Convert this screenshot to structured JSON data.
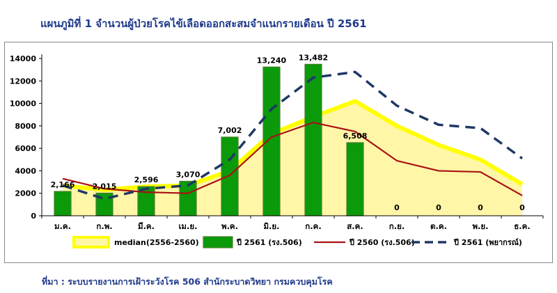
{
  "title": "แผนภูมิที่ 1 จำนวนผู้ป่วยโรคไข้เลือดออกสะสมจำแนกรายเดือน ปี 2561",
  "source": "ที่มา : ระบบรายงานการเฝ้าระวังโรค 506 สำนักระบาดวิทยา กรมควบคุมโรค",
  "colors": {
    "median_fill": "#fff6a8",
    "median_line": "#ffff00",
    "bar_fill": "#0a9a0a",
    "bar_stroke": "#4c7f2c",
    "line_2560": "#aa1212",
    "line_2561_forecast": "#1f3864"
  },
  "chart_data": {
    "type": "bar",
    "categories": [
      "ม.ค.",
      "ก.พ.",
      "มี.ค.",
      "เม.ย.",
      "พ.ค.",
      "มิ.ย.",
      "ก.ค.",
      "ส.ค.",
      "ก.ย.",
      "ต.ค.",
      "พ.ย.",
      "ธ.ค."
    ],
    "ylim": [
      0,
      14000
    ],
    "yticks": [
      "0",
      "2000",
      "4000",
      "6000",
      "8000",
      "10000",
      "12000",
      "14000"
    ],
    "grid": false,
    "legend_position": "bottom",
    "series": [
      {
        "name": "median(2556-2560)",
        "type": "area",
        "values": [
          2700,
          2300,
          2600,
          2700,
          4000,
          7300,
          8800,
          10200,
          8000,
          6300,
          5000,
          2800
        ]
      },
      {
        "name": "ปี 2561 (รง.506)",
        "type": "bar",
        "values": [
          2166,
          2015,
          2596,
          3070,
          7002,
          13240,
          13482,
          6508,
          0,
          0,
          0,
          0
        ],
        "labels": [
          "2,166",
          "2,015",
          "2,596",
          "3,070",
          "7,002",
          "13,240",
          "13,482",
          "6,508",
          "0",
          "0",
          "0",
          "0"
        ]
      },
      {
        "name": "ปี 2560 (รง.506)",
        "type": "line",
        "values": [
          3300,
          2400,
          2100,
          2000,
          3600,
          7000,
          8300,
          7500,
          4900,
          4000,
          3900,
          1800
        ]
      },
      {
        "name": "ปี 2561 (พยากรณ์)",
        "type": "dashed-line",
        "values": [
          2700,
          1500,
          2400,
          2700,
          5000,
          9500,
          12300,
          12800,
          9800,
          8100,
          7800,
          5100
        ]
      }
    ]
  }
}
